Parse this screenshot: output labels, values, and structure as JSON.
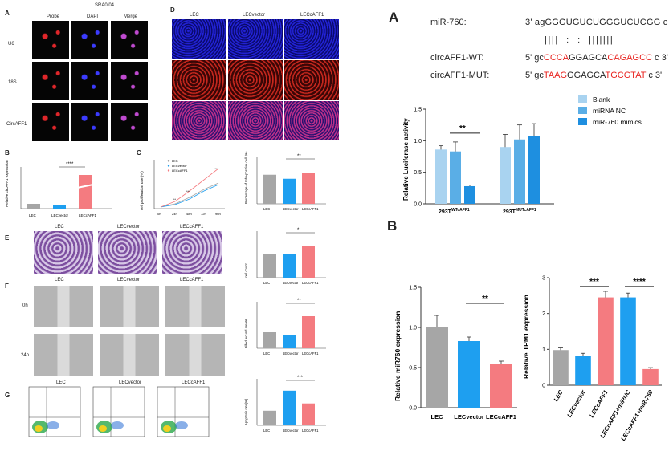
{
  "left_panels": {
    "A": {
      "letter": "A",
      "header": "SRA0/04",
      "cols": [
        "Probe",
        "DAPI",
        "Merge"
      ],
      "rows": [
        "U6",
        "18S",
        "CircAFF1"
      ]
    },
    "B": {
      "letter": "B",
      "ylabel": "Relative circAFF1 expression",
      "sig": "****"
    },
    "C": {
      "letter": "C",
      "ylabel": "cell proliferation rate (%)",
      "xticks": [
        "0h",
        "24h",
        "48h",
        "72h",
        "96h"
      ],
      "legend": [
        "LEC",
        "LECvector",
        "LECcAFF1"
      ],
      "sig": [
        "**",
        "***",
        "****"
      ],
      "bar_ylabel": "Percentage of Edu-positive cell (%)",
      "bar_sig": "**"
    },
    "D": {
      "letter": "D",
      "cols": [
        "LEC",
        "LECvector",
        "LECcAFF1"
      ]
    },
    "E": {
      "letter": "E",
      "cols": [
        "LEC",
        "LECvector",
        "LECcAFF1"
      ],
      "ylabel": "cell count",
      "sig": "*"
    },
    "F": {
      "letter": "F",
      "cols": [
        "LEC",
        "LECvector",
        "LECcAFF1"
      ],
      "rows": [
        "0h",
        "24h"
      ],
      "ylabel": "Filled wound area%",
      "sig": "**"
    },
    "G": {
      "letter": "G",
      "cols": [
        "LEC",
        "LECvector",
        "LECcAFF1"
      ],
      "ylabel": "Apoptosis rate(%)",
      "sig": "***"
    },
    "groups": [
      "LEC",
      "LECvector",
      "LECcAFF1"
    ]
  },
  "panelA": {
    "letter": "A",
    "mir_label": "miR-760:",
    "mir_seq": "3' agGGGUGUCUGGGUCUCGG c 5'",
    "pairs": "||||  :  :  |||||||",
    "wt_label": "circAFF1-WT:",
    "wt_seq": [
      {
        "t": "5' gc",
        "c": "#222"
      },
      {
        "t": "CCCA",
        "c": "#e8231f"
      },
      {
        "t": "GGAGCA",
        "c": "#222"
      },
      {
        "t": "CAGAGCC",
        "c": "#e8231f"
      },
      {
        "t": " c 3'",
        "c": "#222"
      }
    ],
    "mut_label": "circAFF1-MUT:",
    "mut_seq": [
      {
        "t": "5' gc",
        "c": "#222"
      },
      {
        "t": "TAAG",
        "c": "#e8231f"
      },
      {
        "t": "GGAGCA",
        "c": "#222"
      },
      {
        "t": "TGCGTAT",
        "c": "#e8231f"
      },
      {
        "t": " c 3'",
        "c": "#222"
      }
    ]
  },
  "chart_data": [
    {
      "type": "bar",
      "ylabel": "Relative Luciferase activity",
      "ylim": [
        0,
        1.5
      ],
      "yticks": [
        "0.0",
        "0.5",
        "1.0",
        "1.5"
      ],
      "categories": [
        "293T",
        "293T"
      ],
      "category_sup": [
        "WTcAFF1",
        "MUTcAFF1"
      ],
      "series": [
        {
          "name": "Blank",
          "color": "#a9d3f0",
          "values": [
            0.86,
            0.9
          ],
          "err": [
            0.06,
            0.2
          ]
        },
        {
          "name": "miRNA NC",
          "color": "#5aaee6",
          "values": [
            0.83,
            1.02
          ],
          "err": [
            0.15,
            0.23
          ]
        },
        {
          "name": "miR-760 mimics",
          "color": "#1e8fe0",
          "values": [
            0.28,
            1.08
          ],
          "err": [
            0.02,
            0.19
          ]
        }
      ],
      "sig": "**",
      "legend_position": "right"
    },
    {
      "type": "bar",
      "ylabel": "Relative miR760 expression",
      "ylim": [
        0,
        1.5
      ],
      "yticks": [
        "0.0",
        "0.5",
        "1.0",
        "1.5"
      ],
      "categories": [
        "LEC",
        "LECvector",
        "LECcAFF1"
      ],
      "values": [
        1.0,
        0.83,
        0.54
      ],
      "err": [
        0.15,
        0.05,
        0.04
      ],
      "colors": [
        "#a6a6a6",
        "#1e9ff0",
        "#f47b80"
      ],
      "sig": "**"
    },
    {
      "type": "bar",
      "ylabel": "Relative TPM1 expression",
      "ylim": [
        0,
        3
      ],
      "yticks": [
        "0",
        "1",
        "2",
        "3"
      ],
      "categories": [
        "LEC",
        "LECvector",
        "LECcAFF1",
        "LECcAFF1+miRNC",
        "LECcAFF1+miR-760"
      ],
      "values": [
        0.98,
        0.82,
        2.45,
        2.45,
        0.45
      ],
      "err": [
        0.06,
        0.07,
        0.17,
        0.12,
        0.04
      ],
      "colors": [
        "#a6a6a6",
        "#1e9ff0",
        "#f47b80",
        "#1e9ff0",
        "#f47b80"
      ],
      "sig": [
        "***",
        "****"
      ]
    }
  ],
  "panelB_letter": "B"
}
